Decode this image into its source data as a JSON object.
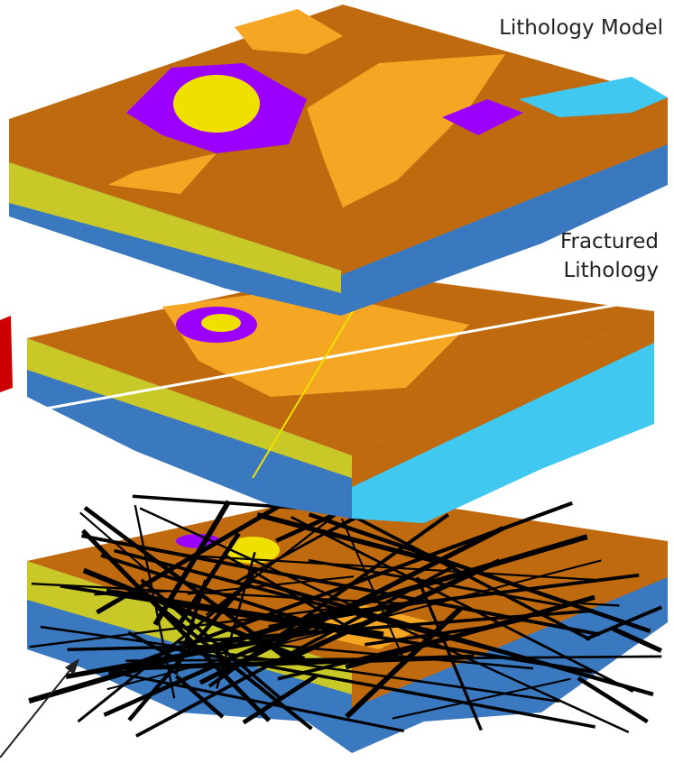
{
  "labels": {
    "top": "Lithology Model",
    "middle": [
      "Fractured",
      "Lithology"
    ]
  }
}
